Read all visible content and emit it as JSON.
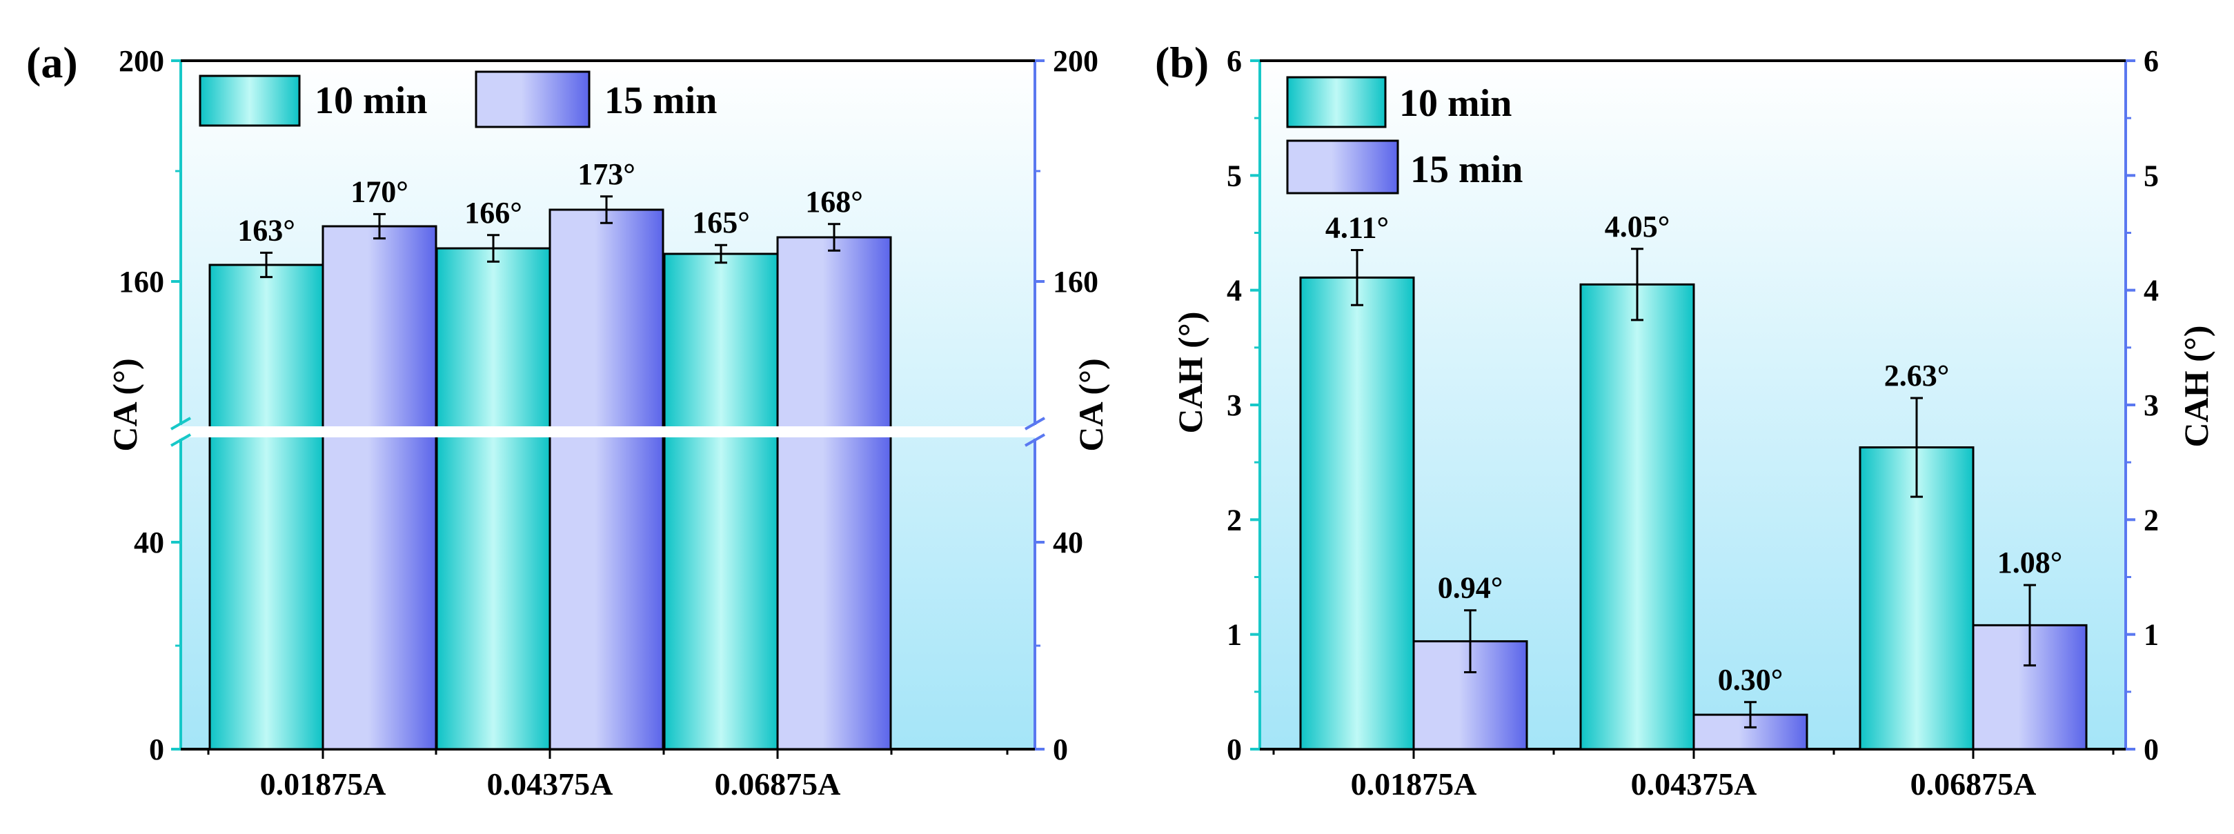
{
  "figure": {
    "panel_a_label": "(a)",
    "panel_b_label": "(b)"
  },
  "colors": {
    "axis_left": "#17c8c8",
    "axis_right": "#5a78f0",
    "series_10_light": "#bff9f6",
    "series_10_dark": "#0ec3c6",
    "series_15_light": "#ccd2fb",
    "series_15_dark": "#5b65ea",
    "bg_light": "#ffffff",
    "bg_dark": "#a5e5f8"
  },
  "chart_data": [
    {
      "id": "a",
      "type": "bar",
      "title": "",
      "xlabel": "",
      "ylabel": "CA (°)",
      "ylabel_right": "CA (°)",
      "categories": [
        "0.01875A",
        "0.04375A",
        "0.06875A"
      ],
      "series": [
        {
          "name": "10 min",
          "values": [
            163,
            166,
            165
          ],
          "errors": [
            2.2,
            2.4,
            1.6
          ],
          "labels": [
            "163°",
            "166°",
            "165°"
          ]
        },
        {
          "name": "15 min",
          "values": [
            170,
            173,
            168
          ],
          "errors": [
            2.2,
            2.4,
            2.4
          ],
          "labels": [
            "170°",
            "173°",
            "168°"
          ]
        }
      ],
      "y_axis_break": true,
      "y_lower_range": [
        0,
        60
      ],
      "y_upper_range": [
        134,
        200
      ],
      "yticks": [
        0,
        40,
        160,
        200
      ],
      "ytick_labels": [
        "0",
        "40",
        "160",
        "200"
      ],
      "legend": "top-left"
    },
    {
      "id": "b",
      "type": "bar",
      "title": "",
      "xlabel": "",
      "ylabel": "CAH (°)",
      "ylabel_right": "CAH (°)",
      "categories": [
        "0.01875A",
        "0.04375A",
        "0.06875A"
      ],
      "series": [
        {
          "name": "10 min",
          "values": [
            4.11,
            4.05,
            2.63
          ],
          "errors": [
            0.24,
            0.31,
            0.43
          ],
          "labels": [
            "4.11°",
            "4.05°",
            "2.63°"
          ]
        },
        {
          "name": "15 min",
          "values": [
            0.94,
            0.3,
            1.08
          ],
          "errors": [
            0.27,
            0.11,
            0.35
          ],
          "labels": [
            "0.94°",
            "0.30°",
            "1.08°"
          ]
        }
      ],
      "ylim": [
        0,
        6
      ],
      "yticks": [
        0,
        1,
        2,
        3,
        4,
        5,
        6
      ],
      "ytick_labels": [
        "0",
        "1",
        "2",
        "3",
        "4",
        "5",
        "6"
      ],
      "legend": "top-left"
    }
  ]
}
